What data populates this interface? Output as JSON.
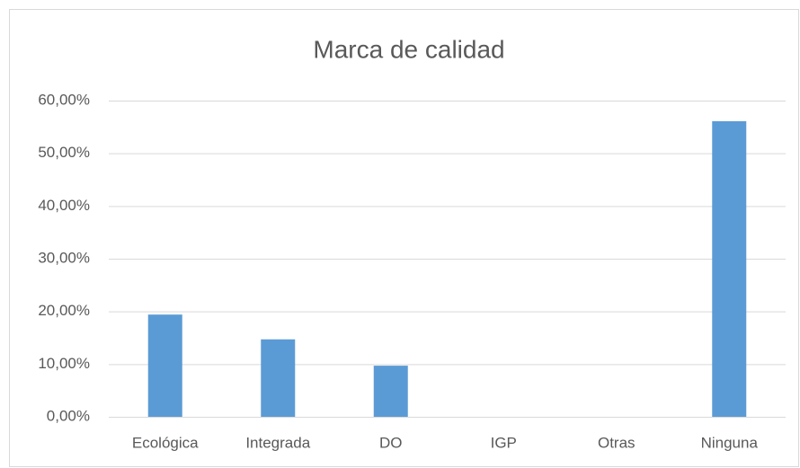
{
  "chart_data": {
    "type": "bar",
    "title": "Marca de calidad",
    "categories": [
      "Ecológica",
      "Integrada",
      "DO",
      "IGP",
      "Otras",
      "Ninguna"
    ],
    "values": [
      19.4,
      14.7,
      9.7,
      0,
      0,
      56.1
    ],
    "color": "#5b9bd5",
    "ylim": [
      0,
      60
    ],
    "yticks": [
      {
        "value": 0,
        "label": "0,00%"
      },
      {
        "value": 10,
        "label": "10,00%"
      },
      {
        "value": 20,
        "label": "20,00%"
      },
      {
        "value": 30,
        "label": "30,00%"
      },
      {
        "value": 40,
        "label": "40,00%"
      },
      {
        "value": 50,
        "label": "50,00%"
      },
      {
        "value": 60,
        "label": "60,00%"
      }
    ],
    "grid": true
  }
}
